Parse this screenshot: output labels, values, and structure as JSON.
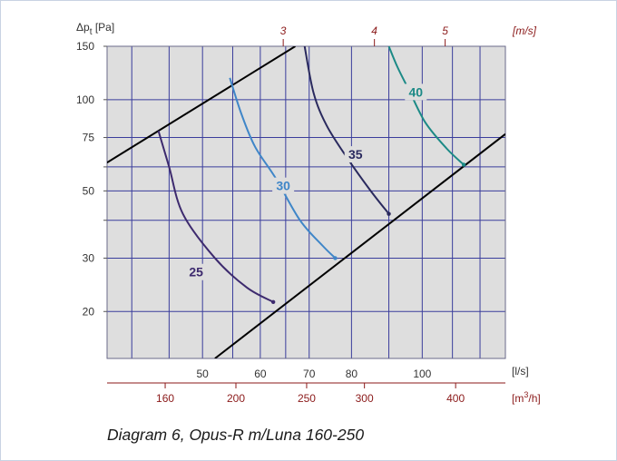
{
  "caption": "Diagram 6, Opus-R m/Luna 160-250",
  "colors": {
    "plot_background": "#dedede",
    "grid": "#3a3d9c",
    "system_line": "#000000",
    "curve_25": "#3d2a6e",
    "curve_30": "#3f86c8",
    "curve_35": "#2a2a5e",
    "curve_40": "#1c8a86",
    "red_axis_text": "#8b1a1a",
    "axis_text": "#333333"
  },
  "chart_data": {
    "type": "line",
    "title": "",
    "ylabel": "Δp",
    "ylabel_sub": "t",
    "ylabel_unit": "[Pa]",
    "y_scale": "log",
    "ylim": [
      14,
      150
    ],
    "y_ticks": [
      20,
      30,
      50,
      75,
      100,
      150
    ],
    "x_bottom": {
      "label": "[l/s]",
      "scale": "log",
      "range": [
        37,
        130
      ],
      "ticks": [
        50,
        60,
        70,
        80,
        100
      ]
    },
    "x_m3h": {
      "label_prefix": "[m",
      "label_sup": "3",
      "label_suffix": "/h]",
      "ticks": [
        160,
        200,
        250,
        300,
        400
      ]
    },
    "x_top": {
      "label": "[m/s]",
      "ticks": [
        3,
        4,
        5
      ],
      "tick_ls": [
        64.5,
        86,
        107.5
      ]
    },
    "series": [
      {
        "name": "25",
        "label_at": [
          49,
          27
        ],
        "points": [
          [
            43.5,
            79
          ],
          [
            45,
            60
          ],
          [
            47,
            42
          ],
          [
            52,
            30
          ],
          [
            57.5,
            24
          ],
          [
            62.5,
            21.5
          ]
        ]
      },
      {
        "name": "30",
        "label_at": [
          64.5,
          52
        ],
        "points": [
          [
            54.5,
            118
          ],
          [
            56.5,
            90
          ],
          [
            59,
            70
          ],
          [
            63,
            55
          ],
          [
            68,
            40
          ],
          [
            73,
            33
          ],
          [
            76,
            30
          ]
        ]
      },
      {
        "name": "35",
        "label_at": [
          81,
          66
        ],
        "points": [
          [
            69,
            150
          ],
          [
            71,
            105
          ],
          [
            74,
            82
          ],
          [
            79,
            64
          ],
          [
            85,
            50
          ],
          [
            90,
            42
          ]
        ]
      },
      {
        "name": "40",
        "label_at": [
          98,
          106
        ],
        "points": [
          [
            90,
            150
          ],
          [
            92.5,
            128
          ],
          [
            96,
            107
          ],
          [
            101,
            84
          ],
          [
            108,
            69
          ],
          [
            114,
            61
          ]
        ]
      }
    ],
    "system_lines": [
      {
        "points": [
          [
            37,
            62
          ],
          [
            67,
            150
          ]
        ]
      },
      {
        "points": [
          [
            52,
            14
          ],
          [
            130,
            77
          ]
        ]
      }
    ]
  }
}
